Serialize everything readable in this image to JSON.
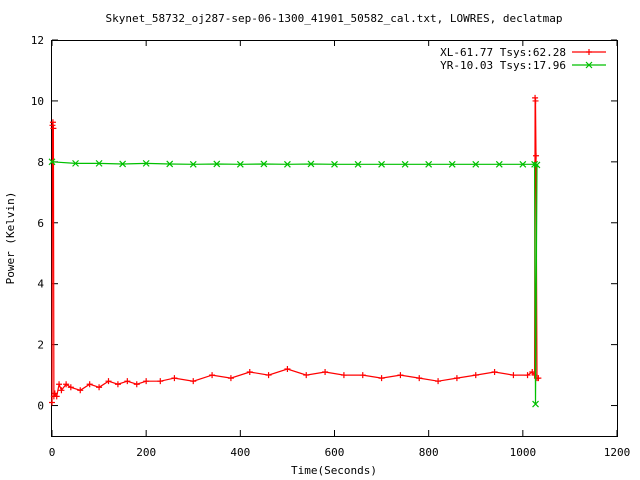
{
  "chart_data": {
    "type": "line",
    "title": "Skynet_58732_oj287-sep-06-1300_41901_50582_cal.txt, LOWRES, declatmap",
    "xlabel": "Time(Seconds)",
    "ylabel": "Power (Kelvin)",
    "xlim": [
      0,
      1200
    ],
    "ylim": [
      -1,
      12
    ],
    "xticks": [
      0,
      200,
      400,
      600,
      800,
      1000,
      1200
    ],
    "yticks": [
      0,
      2,
      4,
      6,
      8,
      10,
      12
    ],
    "grid": false,
    "legend_position": "top-right",
    "series": [
      {
        "name": "XL-61.77 Tsys:62.28",
        "color": "#ff0000",
        "marker": "plus",
        "x": [
          0,
          1,
          2,
          3,
          4,
          6,
          10,
          15,
          20,
          30,
          40,
          60,
          80,
          100,
          120,
          140,
          160,
          180,
          200,
          230,
          260,
          300,
          340,
          380,
          420,
          460,
          500,
          540,
          580,
          620,
          660,
          700,
          740,
          780,
          820,
          860,
          900,
          940,
          980,
          1010,
          1020,
          1025,
          1026,
          1027,
          1028,
          1030,
          1033
        ],
        "y": [
          0.1,
          9.2,
          9.3,
          9.1,
          0.3,
          0.4,
          0.3,
          0.7,
          0.5,
          0.7,
          0.6,
          0.5,
          0.7,
          0.6,
          0.8,
          0.7,
          0.8,
          0.7,
          0.8,
          0.8,
          0.9,
          0.8,
          1.0,
          0.9,
          1.1,
          1.0,
          1.2,
          1.0,
          1.1,
          1.0,
          1.0,
          0.9,
          1.0,
          0.9,
          0.8,
          0.9,
          1.0,
          1.1,
          1.0,
          1.0,
          1.1,
          1.0,
          10.1,
          10.0,
          8.2,
          0.9,
          0.9
        ]
      },
      {
        "name": "YR-10.03 Tsys:17.96",
        "color": "#00c000",
        "marker": "x",
        "x": [
          0,
          50,
          100,
          150,
          200,
          250,
          300,
          350,
          400,
          450,
          500,
          550,
          600,
          650,
          700,
          750,
          800,
          850,
          900,
          950,
          1000,
          1025,
          1027,
          1030
        ],
        "y": [
          8.0,
          7.95,
          7.95,
          7.93,
          7.95,
          7.93,
          7.92,
          7.93,
          7.92,
          7.93,
          7.92,
          7.93,
          7.92,
          7.92,
          7.92,
          7.92,
          7.92,
          7.92,
          7.92,
          7.92,
          7.92,
          7.92,
          0.05,
          7.9
        ]
      }
    ]
  }
}
